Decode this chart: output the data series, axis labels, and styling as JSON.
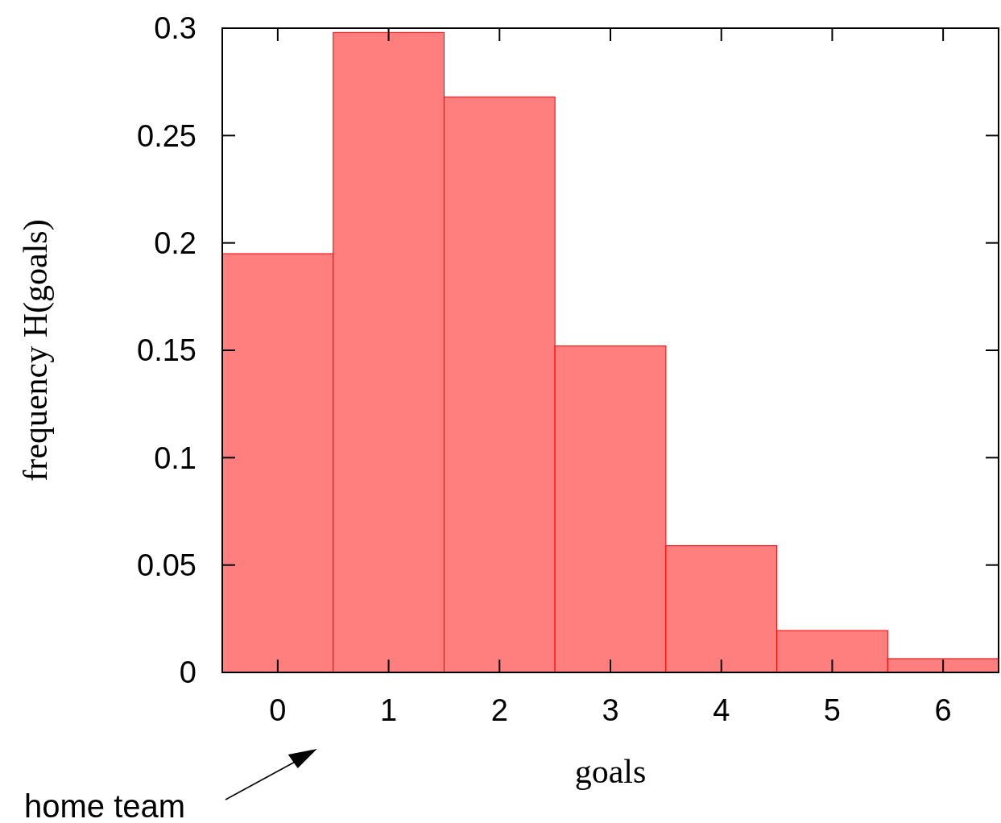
{
  "chart_data": {
    "type": "histogram",
    "xlabel": "goals",
    "ylabel": "frequency H(goals)",
    "bins": [
      -0.5,
      0.5,
      1.5,
      2.5,
      3.5,
      4.5,
      5.5,
      6.5
    ],
    "values": [
      0.195,
      0.298,
      0.268,
      0.152,
      0.059,
      0.0195,
      0.0064
    ],
    "color": "#ff7f7f",
    "xlim": [
      -0.5,
      6.5
    ],
    "xticks": [
      0,
      1,
      2,
      3,
      4,
      5,
      6
    ],
    "ylim": [
      0,
      0.3
    ],
    "yticks": [
      0,
      0.05,
      0.1,
      0.15,
      0.2,
      0.25,
      0.3
    ],
    "grid": false,
    "annotations": [
      "home team"
    ]
  }
}
